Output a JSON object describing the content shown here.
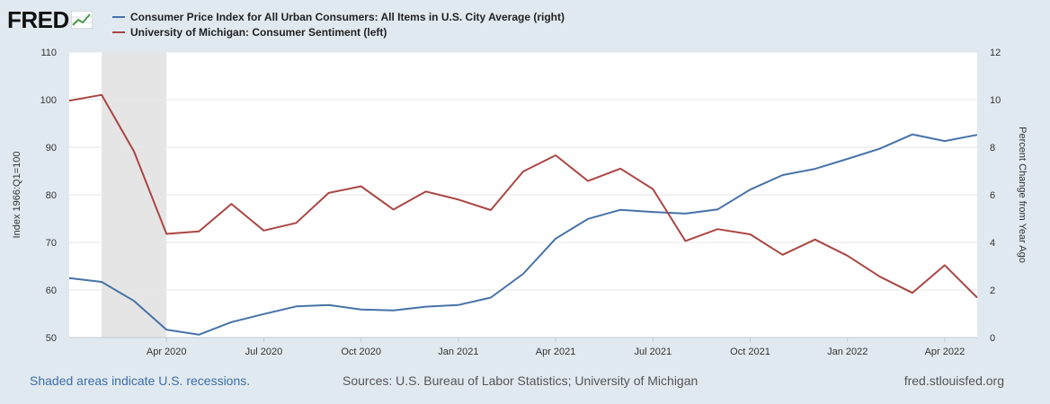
{
  "logo": {
    "text": "FRED",
    "icon": "chart-line-icon"
  },
  "legend": [
    {
      "label": "Consumer Price Index for All Urban Consumers: All Items in U.S. City Average (right)",
      "color": "#4572a7"
    },
    {
      "label": "University of Michigan: Consumer Sentiment (left)",
      "color": "#aa4643"
    }
  ],
  "footer": {
    "left": "Shaded areas indicate U.S. recessions.",
    "center": "Sources: U.S. Bureau of Labor Statistics; University of Michigan",
    "right": "fred.stlouisfed.org"
  },
  "chart_data": {
    "type": "line",
    "x": [
      "2020-01",
      "2020-02",
      "2020-03",
      "2020-04",
      "2020-05",
      "2020-06",
      "2020-07",
      "2020-08",
      "2020-09",
      "2020-10",
      "2020-11",
      "2020-12",
      "2021-01",
      "2021-02",
      "2021-03",
      "2021-04",
      "2021-05",
      "2021-06",
      "2021-07",
      "2021-08",
      "2021-09",
      "2021-10",
      "2021-11",
      "2021-12",
      "2022-01",
      "2022-02",
      "2022-03",
      "2022-04",
      "2022-05"
    ],
    "x_tick_labels": [
      {
        "x": "2020-04",
        "label": "Apr 2020"
      },
      {
        "x": "2020-07",
        "label": "Jul 2020"
      },
      {
        "x": "2020-10",
        "label": "Oct 2020"
      },
      {
        "x": "2021-01",
        "label": "Jan 2021"
      },
      {
        "x": "2021-04",
        "label": "Apr 2021"
      },
      {
        "x": "2021-07",
        "label": "Jul 2021"
      },
      {
        "x": "2021-10",
        "label": "Oct 2021"
      },
      {
        "x": "2022-01",
        "label": "Jan 2022"
      },
      {
        "x": "2022-04",
        "label": "Apr 2022"
      }
    ],
    "recession": {
      "start": "2020-02",
      "end": "2020-04"
    },
    "y_left": {
      "label": "Index 1966:Q1=100",
      "range": [
        50,
        110
      ],
      "ticks": [
        50,
        60,
        70,
        80,
        90,
        100,
        110
      ]
    },
    "y_right": {
      "label": "Percent Change from Year Ago",
      "range": [
        0,
        12
      ],
      "ticks": [
        0,
        2,
        4,
        6,
        8,
        10,
        12
      ]
    },
    "series": [
      {
        "name": "Consumer Price Index for All Urban Consumers: All Items in U.S. City Average",
        "axis": "right",
        "color": "#4572a7",
        "values": [
          2.5,
          2.34,
          1.54,
          0.33,
          0.12,
          0.65,
          0.99,
          1.31,
          1.37,
          1.18,
          1.14,
          1.3,
          1.37,
          1.68,
          2.68,
          4.16,
          4.99,
          5.37,
          5.28,
          5.21,
          5.39,
          6.22,
          6.83,
          7.09,
          7.51,
          7.94,
          8.54,
          8.26,
          8.52
        ]
      },
      {
        "name": "University of Michigan: Consumer Sentiment",
        "axis": "left",
        "color": "#aa4643",
        "values": [
          99.8,
          101.0,
          89.1,
          71.8,
          72.3,
          78.1,
          72.5,
          74.1,
          80.4,
          81.8,
          76.9,
          80.7,
          79.0,
          76.8,
          84.9,
          88.3,
          82.9,
          85.5,
          81.2,
          70.3,
          72.8,
          71.7,
          67.4,
          70.6,
          67.2,
          62.8,
          59.4,
          65.2,
          58.4
        ]
      }
    ],
    "grid": "horizontal"
  }
}
